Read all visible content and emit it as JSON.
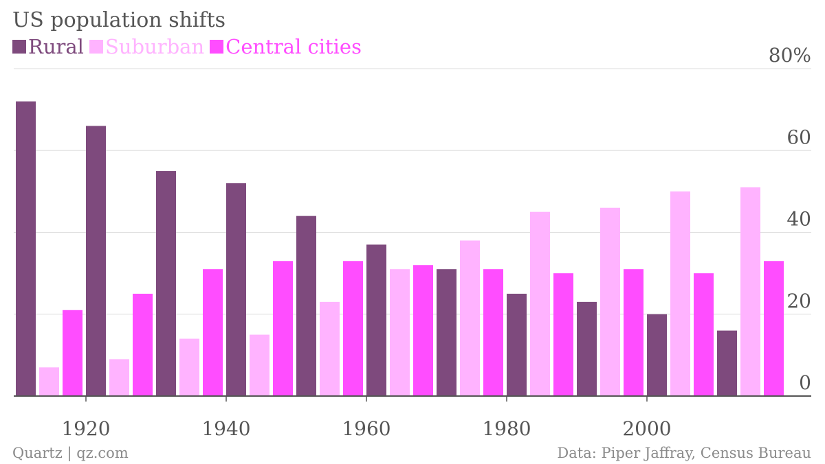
{
  "colors": {
    "rural": "#7e4a7d",
    "suburban": "#ffb3ff",
    "central_cities": "#ff4dff",
    "grid": "#dddddd",
    "axis": "#555555",
    "text": "#555555",
    "footer": "#8a8a8a"
  },
  "chart_data": {
    "type": "bar",
    "title": "US population shifts",
    "xlabel": "",
    "ylabel": "",
    "categories": [
      "1910",
      "1920",
      "1930",
      "1940",
      "1950",
      "1960",
      "1970",
      "1980",
      "1990",
      "2000",
      "2010"
    ],
    "series": [
      {
        "name": "Rural",
        "color": "#7e4a7d",
        "values": [
          72,
          66,
          55,
          52,
          44,
          37,
          31,
          25,
          23,
          20,
          16
        ]
      },
      {
        "name": "Suburban",
        "color": "#ffb3ff",
        "values": [
          7,
          9,
          14,
          15,
          23,
          31,
          38,
          45,
          46,
          50,
          51
        ]
      },
      {
        "name": "Central cities",
        "color": "#ff4dff",
        "values": [
          21,
          25,
          31,
          33,
          33,
          32,
          31,
          30,
          31,
          30,
          33
        ]
      }
    ],
    "ylim": [
      0,
      80
    ],
    "y_ticks": [
      {
        "value": 0,
        "label": "0"
      },
      {
        "value": 20,
        "label": "20"
      },
      {
        "value": 40,
        "label": "40"
      },
      {
        "value": 60,
        "label": "60"
      },
      {
        "value": 80,
        "label": "80%"
      }
    ],
    "x_ticks": [
      {
        "value": 1920,
        "label": "1920"
      },
      {
        "value": 1940,
        "label": "1940"
      },
      {
        "value": 1960,
        "label": "1960"
      },
      {
        "value": 1980,
        "label": "1980"
      },
      {
        "value": 2000,
        "label": "2000"
      }
    ],
    "grid": true,
    "legend_position": "top-left",
    "y_axis_position": "right"
  },
  "footer": {
    "source_left": "Quartz | qz.com",
    "source_right": "Data: Piper Jaffray, Census Bureau"
  }
}
